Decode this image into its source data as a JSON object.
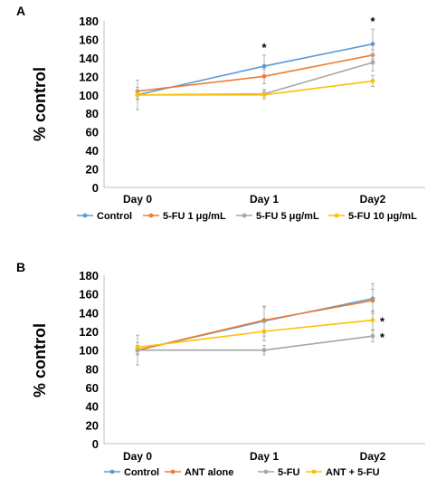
{
  "chart_data": [
    {
      "type": "line",
      "panel_label": "A",
      "categories": [
        "Day 0",
        "Day 1",
        "Day2"
      ],
      "ylabel": "% control",
      "ylim": [
        0,
        180
      ],
      "yticks": [
        "0",
        "20",
        "40",
        "60",
        "80",
        "100",
        "120",
        "140",
        "160",
        "180"
      ],
      "grid": false,
      "legend_position": "bottom",
      "series": [
        {
          "name": "Control",
          "color": "#5b9bd5",
          "values": [
            100,
            131,
            155
          ],
          "errors": [
            4,
            12,
            16
          ]
        },
        {
          "name": "5-FU 1 μg/mL",
          "color": "#ed7d31",
          "values": [
            104,
            120,
            143
          ],
          "errors": [
            4,
            8,
            6
          ]
        },
        {
          "name": "5-FU 5 μg/mL",
          "color": "#a5a5a5",
          "values": [
            100,
            101,
            135
          ],
          "errors": [
            16,
            5,
            9
          ]
        },
        {
          "name": "5-FU 10 μg/mL",
          "color": "#ffc000",
          "values": [
            100,
            100,
            115
          ],
          "errors": [
            5,
            4,
            6
          ]
        }
      ],
      "annotations": [
        {
          "text": "*",
          "category": "Day 1"
        },
        {
          "text": "*",
          "category": "Day2"
        }
      ]
    },
    {
      "type": "line",
      "panel_label": "B",
      "categories": [
        "Day 0",
        "Day 1",
        "Day2"
      ],
      "ylabel": "% control",
      "ylim": [
        0,
        180
      ],
      "yticks": [
        "0",
        "20",
        "40",
        "60",
        "80",
        "100",
        "120",
        "140",
        "160",
        "180"
      ],
      "grid": false,
      "legend_position": "bottom",
      "series": [
        {
          "name": "Control",
          "color": "#5b9bd5",
          "values": [
            100,
            131,
            155
          ],
          "errors": [
            4,
            16,
            16
          ]
        },
        {
          "name": "ANT alone",
          "color": "#ed7d31",
          "values": [
            100,
            132,
            153
          ],
          "errors": [
            5,
            14,
            12
          ]
        },
        {
          "name": "5-FU",
          "color": "#a5a5a5",
          "values": [
            100,
            100,
            115
          ],
          "errors": [
            16,
            5,
            6
          ]
        },
        {
          "name": "ANT + 5-FU",
          "color": "#ffc000",
          "values": [
            103,
            120,
            132
          ],
          "errors": [
            5,
            10,
            10
          ]
        }
      ],
      "annotations": [
        {
          "text": "*",
          "category": "Day2",
          "series": "ANT + 5-FU"
        },
        {
          "text": "*",
          "category": "Day2",
          "series": "5-FU"
        }
      ]
    }
  ]
}
